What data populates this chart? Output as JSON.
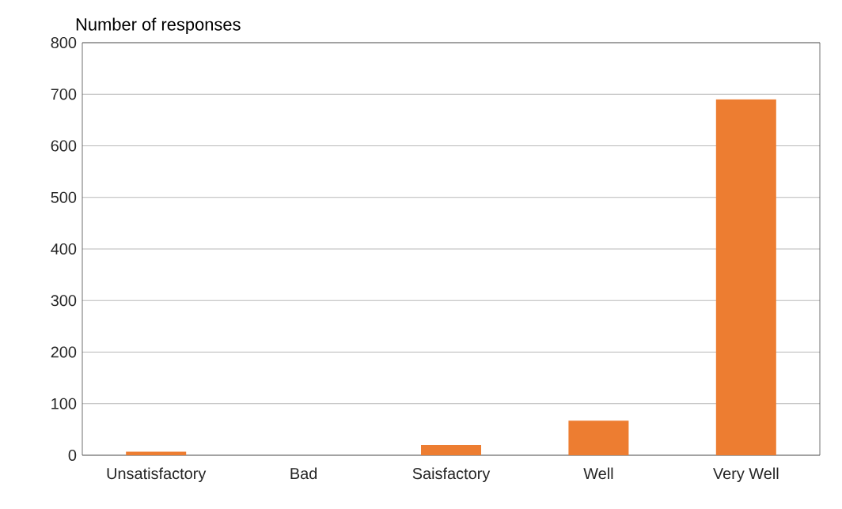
{
  "chart_data": {
    "type": "bar",
    "ylabel": "Number of responses",
    "categories": [
      "Unsatisfactory",
      "Bad",
      "Saisfactory",
      "Well",
      "Very Well"
    ],
    "values": [
      7,
      0,
      20,
      67,
      690
    ],
    "color": "#ed7d31",
    "ylim": [
      0,
      800
    ],
    "yticks": [
      0,
      100,
      200,
      300,
      400,
      500,
      600,
      700,
      800
    ],
    "grid": "y"
  }
}
